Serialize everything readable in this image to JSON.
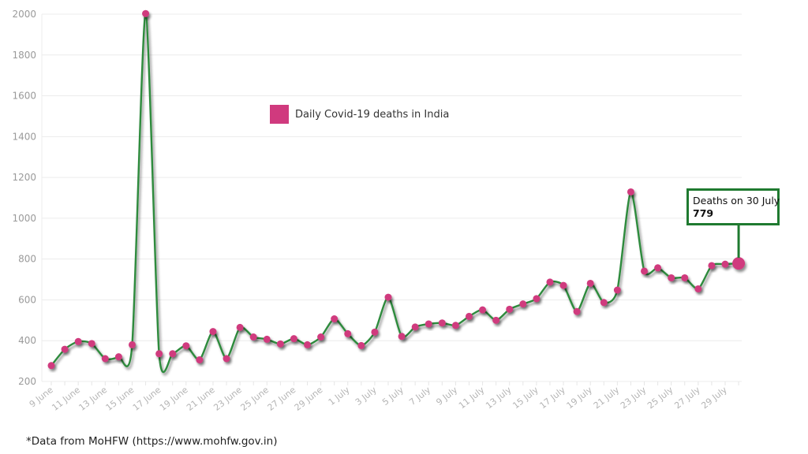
{
  "chart_data": {
    "type": "line",
    "title": "",
    "xlabel": "",
    "ylabel": "",
    "ylim": [
      200,
      2000
    ],
    "yticks": [
      200,
      400,
      600,
      800,
      1000,
      1200,
      1400,
      1600,
      1800,
      2000
    ],
    "grid": true,
    "legend_position": "upper-center",
    "series": [
      {
        "name": "Daily Covid-19 deaths in India",
        "line_color": "#2e8b3e",
        "marker_color": "#d03a7e",
        "values": [
          278,
          358,
          396,
          386,
          312,
          321,
          380,
          2003,
          336,
          336,
          375,
          306,
          445,
          312,
          465,
          418,
          407,
          384,
          410,
          380,
          418,
          507,
          434,
          376,
          442,
          613,
          421,
          467,
          482,
          487,
          475,
          519,
          551,
          500,
          554,
          580,
          606,
          687,
          671,
          543,
          681,
          587,
          648,
          1129,
          741,
          757,
          708,
          708,
          654,
          768,
          775,
          779
        ]
      }
    ],
    "x": [
      "9 June",
      "10 June",
      "11 June",
      "12 June",
      "13 June",
      "14 June",
      "15 June",
      "16 June",
      "17 June",
      "18 June",
      "19 June",
      "20 June",
      "21 June",
      "22 June",
      "23 June",
      "24 June",
      "25 June",
      "26 June",
      "27 June",
      "28 June",
      "29 June",
      "30 June",
      "1 July",
      "2 July",
      "3 July",
      "4 July",
      "5 July",
      "6 July",
      "7 July",
      "8 July",
      "9 July",
      "10 July",
      "11 July",
      "12 July",
      "13 July",
      "14 July",
      "15 July",
      "16 July",
      "17 July",
      "18 July",
      "19 July",
      "20 July",
      "21 July",
      "22 July",
      "23 July",
      "24 July",
      "25 July",
      "26 July",
      "27 July",
      "28 July",
      "29 July",
      "30 July"
    ],
    "x_tick_labels": [
      "9 June",
      "11 June",
      "13 June",
      "15 June",
      "17 June",
      "19 June",
      "21 June",
      "23 June",
      "25 June",
      "27 June",
      "29 June",
      "1 July",
      "3 July",
      "5 July",
      "7 July",
      "9 July",
      "11 July",
      "13 July",
      "15 July",
      "17 July",
      "19 July",
      "21 July",
      "23 July",
      "25 July",
      "27 July",
      "29 July"
    ],
    "annotations": [
      {
        "text": "Deaths on 30 July",
        "value": "779",
        "x": "30 July"
      }
    ]
  },
  "legend": {
    "label": "Daily Covid-19 deaths in India",
    "color": "#d03a7e"
  },
  "callout": {
    "title": "Deaths on 30 July",
    "value": "779"
  },
  "footnote": "*Data from MoHFW (https://www.mohfw.gov.in)"
}
